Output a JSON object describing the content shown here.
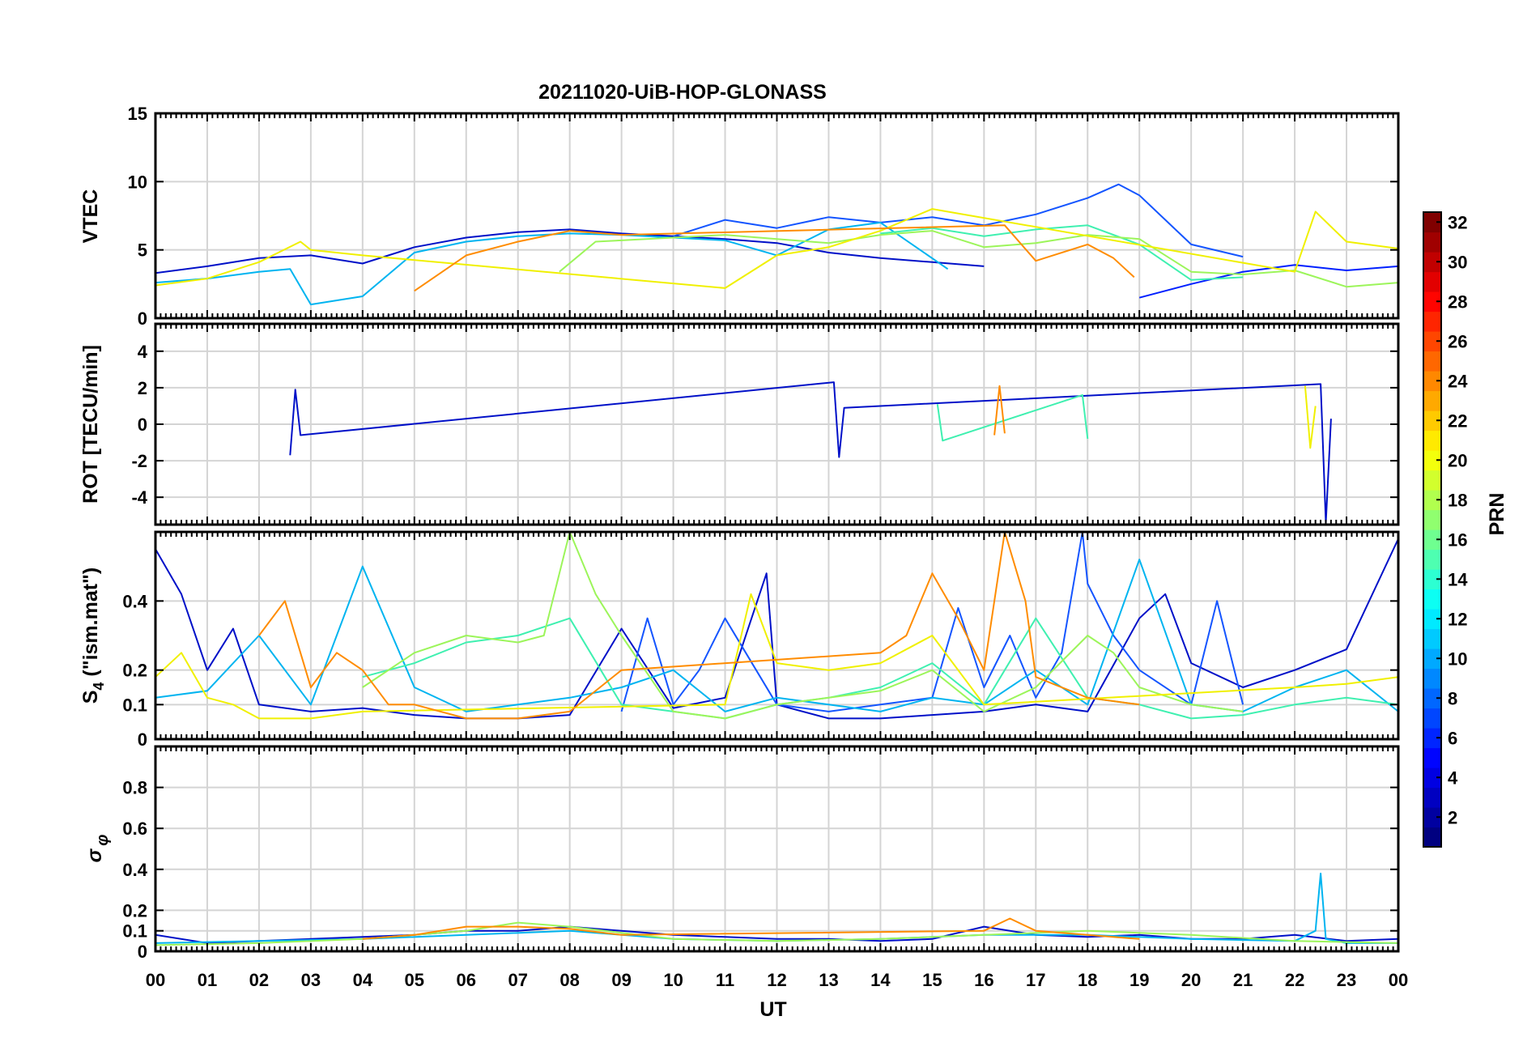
{
  "chart_data": {
    "type": "line",
    "title": "20211020-UiB-HOP-GLONASS",
    "xlabel": "UT",
    "x_range": [
      0,
      24
    ],
    "x_tick_labels": [
      "00",
      "01",
      "02",
      "03",
      "04",
      "05",
      "06",
      "07",
      "08",
      "09",
      "10",
      "11",
      "12",
      "13",
      "14",
      "15",
      "16",
      "17",
      "18",
      "19",
      "20",
      "21",
      "22",
      "23",
      "00"
    ],
    "panels": [
      {
        "name": "vtec",
        "ylabel": "VTEC",
        "ylim": [
          0,
          15
        ],
        "yticks": [
          0,
          5,
          10,
          15
        ],
        "ytick_labels": [
          "0",
          "5",
          "10",
          "15"
        ],
        "grid": true,
        "series": [
          {
            "name": "PRN 2",
            "prn": 2,
            "color": "#0010c8",
            "x": [
              0,
              1,
              2,
              3,
              4,
              5,
              6,
              7,
              8,
              9,
              10,
              11,
              12,
              13,
              14,
              15,
              16
            ],
            "y": [
              3.3,
              3.8,
              4.4,
              4.6,
              4.0,
              5.2,
              5.9,
              6.3,
              6.5,
              6.2,
              6.0,
              5.8,
              5.5,
              4.8,
              4.4,
              4.1,
              3.8
            ]
          },
          {
            "name": "PRN 3",
            "prn": 3,
            "color": "#0020ff",
            "x": [
              19,
              20,
              21,
              22,
              23,
              24
            ],
            "y": [
              1.5,
              2.5,
              3.4,
              3.9,
              3.5,
              3.8
            ]
          },
          {
            "name": "PRN 5",
            "prn": 5,
            "color": "#1455ff",
            "x": [
              10,
              11,
              12,
              13,
              14,
              15,
              16,
              17,
              18,
              18.6,
              19,
              20,
              21
            ],
            "y": [
              6.0,
              7.2,
              6.6,
              7.4,
              7.0,
              7.4,
              6.8,
              7.6,
              8.8,
              9.8,
              9.0,
              5.4,
              4.5
            ]
          },
          {
            "name": "PRN 11",
            "prn": 11,
            "color": "#00b4f0",
            "x": [
              0,
              1,
              2,
              2.6,
              3,
              4,
              5,
              6,
              7,
              8,
              9,
              10,
              11,
              12,
              13,
              14,
              15.3
            ],
            "y": [
              2.6,
              2.9,
              3.4,
              3.6,
              1.0,
              1.6,
              4.8,
              5.6,
              6.0,
              6.2,
              6.1,
              5.9,
              5.7,
              4.6,
              6.5,
              7.0,
              3.6
            ]
          },
          {
            "name": "PRN 15",
            "prn": 15,
            "color": "#3ff0b0",
            "x": [
              14,
              15,
              16,
              17,
              18,
              19,
              20,
              21
            ],
            "y": [
              6.2,
              6.6,
              6.0,
              6.5,
              6.8,
              5.4,
              2.8,
              3.0
            ]
          },
          {
            "name": "PRN 17",
            "prn": 17,
            "color": "#9cf55a",
            "x": [
              7.8,
              8.5,
              9,
              10,
              11,
              12,
              13,
              14,
              15,
              16,
              17,
              18,
              19,
              20,
              21,
              22,
              23,
              24
            ],
            "y": [
              3.4,
              5.6,
              5.7,
              5.9,
              6.1,
              5.8,
              5.5,
              6.1,
              6.4,
              5.2,
              5.5,
              6.1,
              5.8,
              3.4,
              3.2,
              3.5,
              2.3,
              2.6
            ]
          },
          {
            "name": "PRN 20",
            "prn": 20,
            "color": "#f0f000",
            "x": [
              0,
              1,
              2,
              2.8,
              3,
              4,
              11,
              12,
              13,
              14,
              15,
              22,
              22.4,
              23,
              24
            ],
            "y": [
              2.4,
              2.9,
              4.1,
              5.6,
              5.0,
              4.6,
              2.2,
              4.6,
              5.2,
              6.4,
              8.0,
              3.4,
              7.8,
              5.6,
              5.1
            ]
          },
          {
            "name": "PRN 23",
            "prn": 23,
            "color": "#ff8c00",
            "x": [
              5,
              6,
              7,
              8,
              9,
              16.4,
              17,
              18,
              18.5,
              18.9
            ],
            "y": [
              2.0,
              4.6,
              5.6,
              6.4,
              6.1,
              6.8,
              4.2,
              5.4,
              4.4,
              3.0
            ]
          }
        ]
      },
      {
        "name": "rot",
        "ylabel": "ROT [TECU/min]",
        "ylim": [
          -5.5,
          5.5
        ],
        "yticks": [
          -4,
          -2,
          0,
          2,
          4
        ],
        "ytick_labels": [
          "-4",
          "-2",
          "0",
          "2",
          "4"
        ],
        "grid": true,
        "series": [
          {
            "name": "PRN 2",
            "prn": 2,
            "color": "#0010c8",
            "x": [
              2.6,
              2.7,
              2.8,
              13.1,
              13.2,
              13.3,
              22.5,
              22.6,
              22.7
            ],
            "y": [
              -1.7,
              1.9,
              -0.6,
              2.3,
              -1.8,
              0.9,
              2.2,
              -5.4,
              0.3
            ]
          },
          {
            "name": "PRN 15",
            "prn": 15,
            "color": "#3ff0b0",
            "x": [
              15.1,
              15.2,
              17.9,
              18.0
            ],
            "y": [
              1.1,
              -0.9,
              1.6,
              -0.8
            ]
          },
          {
            "name": "PRN 20",
            "prn": 20,
            "color": "#f0f000",
            "x": [
              22.2,
              22.3,
              22.4
            ],
            "y": [
              2.1,
              -1.3,
              1.0
            ]
          },
          {
            "name": "PRN 23",
            "prn": 23,
            "color": "#ff8c00",
            "x": [
              16.2,
              16.3,
              16.4
            ],
            "y": [
              -0.6,
              2.1,
              -0.5
            ]
          }
        ]
      },
      {
        "name": "s4",
        "ylabel": "S4 (\"ism.mat\")",
        "ylim": [
          0,
          0.6
        ],
        "yticks": [
          0,
          0.1,
          0.2,
          0.4
        ],
        "ytick_labels": [
          "0",
          "0.1",
          "0.2",
          "0.4"
        ],
        "grid": true,
        "series": [
          {
            "name": "PRN 2",
            "prn": 2,
            "color": "#0010c8",
            "x": [
              0,
              0.5,
              1,
              1.5,
              2,
              3,
              4,
              5,
              6,
              7,
              8,
              9,
              10,
              11,
              11.8,
              12,
              13,
              14,
              15,
              16,
              17,
              18,
              19,
              19.5,
              20,
              21,
              22,
              23,
              24
            ],
            "y": [
              0.55,
              0.42,
              0.2,
              0.32,
              0.1,
              0.08,
              0.09,
              0.07,
              0.06,
              0.06,
              0.07,
              0.32,
              0.09,
              0.12,
              0.48,
              0.1,
              0.06,
              0.06,
              0.07,
              0.08,
              0.1,
              0.08,
              0.35,
              0.42,
              0.22,
              0.15,
              0.2,
              0.26,
              0.58
            ]
          },
          {
            "name": "PRN 5",
            "prn": 5,
            "color": "#1455ff",
            "x": [
              9,
              9.5,
              10,
              10.5,
              11,
              12,
              13,
              14,
              15,
              15.5,
              16,
              16.5,
              17,
              17.5,
              17.9,
              18,
              18.5,
              19,
              20,
              20.5,
              21
            ],
            "y": [
              0.08,
              0.35,
              0.1,
              0.2,
              0.35,
              0.1,
              0.08,
              0.1,
              0.12,
              0.38,
              0.15,
              0.3,
              0.12,
              0.25,
              0.6,
              0.45,
              0.3,
              0.2,
              0.1,
              0.4,
              0.1
            ]
          },
          {
            "name": "PRN 11",
            "prn": 11,
            "color": "#00b4f0",
            "x": [
              0,
              1,
              2,
              3,
              4,
              5,
              6,
              7,
              8,
              9,
              10,
              11,
              12,
              13,
              14,
              15,
              16,
              17,
              18,
              19,
              20,
              21,
              22,
              23,
              24
            ],
            "y": [
              0.12,
              0.14,
              0.3,
              0.1,
              0.5,
              0.15,
              0.08,
              0.1,
              0.12,
              0.15,
              0.2,
              0.08,
              0.12,
              0.1,
              0.08,
              0.12,
              0.1,
              0.2,
              0.1,
              0.52,
              0.1,
              0.08,
              0.15,
              0.2,
              0.08
            ]
          },
          {
            "name": "PRN 15",
            "prn": 15,
            "color": "#3ff0b0",
            "x": [
              4,
              5,
              6,
              7,
              8,
              9,
              10,
              11,
              12,
              13,
              14,
              15,
              16,
              17,
              18,
              19,
              20,
              21,
              22,
              23,
              24
            ],
            "y": [
              0.18,
              0.22,
              0.28,
              0.3,
              0.35,
              0.1,
              0.08,
              0.06,
              0.1,
              0.12,
              0.15,
              0.22,
              0.1,
              0.35,
              0.12,
              0.1,
              0.06,
              0.07,
              0.1,
              0.12,
              0.1
            ]
          },
          {
            "name": "PRN 17",
            "prn": 17,
            "color": "#9cf55a",
            "x": [
              4,
              5,
              6,
              7,
              7.5,
              8,
              8.5,
              9,
              10,
              11,
              12,
              13,
              14,
              15,
              16,
              17,
              18,
              18.5,
              19,
              20,
              21
            ],
            "y": [
              0.15,
              0.25,
              0.3,
              0.28,
              0.3,
              0.6,
              0.42,
              0.3,
              0.08,
              0.06,
              0.1,
              0.12,
              0.14,
              0.2,
              0.08,
              0.15,
              0.3,
              0.25,
              0.15,
              0.1,
              0.08
            ]
          },
          {
            "name": "PRN 20",
            "prn": 20,
            "color": "#f0f000",
            "x": [
              0,
              0.5,
              1,
              1.5,
              2,
              3,
              4,
              11,
              11.5,
              12,
              13,
              14,
              15,
              16,
              22,
              23,
              24
            ],
            "y": [
              0.18,
              0.25,
              0.12,
              0.1,
              0.06,
              0.06,
              0.08,
              0.1,
              0.42,
              0.22,
              0.2,
              0.22,
              0.3,
              0.1,
              0.15,
              0.16,
              0.18
            ]
          },
          {
            "name": "PRN 23",
            "prn": 23,
            "color": "#ff8c00",
            "x": [
              2,
              2.5,
              3,
              3.5,
              4,
              4.5,
              5,
              6,
              7,
              8,
              9,
              14,
              14.5,
              15,
              15.5,
              16,
              16.4,
              16.8,
              17,
              18,
              19
            ],
            "y": [
              0.3,
              0.4,
              0.15,
              0.25,
              0.2,
              0.1,
              0.1,
              0.06,
              0.06,
              0.08,
              0.2,
              0.25,
              0.3,
              0.48,
              0.35,
              0.2,
              0.6,
              0.4,
              0.18,
              0.12,
              0.1
            ]
          }
        ]
      },
      {
        "name": "sigma_phi",
        "ylabel": "σ φ",
        "ylim": [
          0,
          1.0
        ],
        "yticks": [
          0,
          0.1,
          0.2,
          0.4,
          0.6,
          0.8
        ],
        "ytick_labels": [
          "0",
          "0.1",
          "0.2",
          "0.4",
          "0.6",
          "0.8"
        ],
        "grid": true,
        "series": [
          {
            "name": "PRN 2",
            "prn": 2,
            "color": "#0010c8",
            "x": [
              0,
              1,
              2,
              3,
              4,
              5,
              6,
              7,
              8,
              9,
              10,
              11,
              12,
              13,
              14,
              15,
              16,
              17,
              18,
              19,
              20,
              21,
              22,
              23,
              24
            ],
            "y": [
              0.08,
              0.04,
              0.05,
              0.06,
              0.07,
              0.08,
              0.1,
              0.1,
              0.12,
              0.1,
              0.08,
              0.07,
              0.06,
              0.06,
              0.05,
              0.06,
              0.12,
              0.08,
              0.07,
              0.08,
              0.06,
              0.06,
              0.08,
              0.05,
              0.06
            ]
          },
          {
            "name": "PRN 11",
            "prn": 11,
            "color": "#00b4f0",
            "x": [
              0,
              2,
              4,
              6,
              8,
              10,
              12,
              14,
              16,
              18,
              20,
              22,
              22.4,
              22.5,
              22.6,
              23,
              24
            ],
            "y": [
              0.04,
              0.05,
              0.06,
              0.08,
              0.1,
              0.06,
              0.05,
              0.06,
              0.08,
              0.08,
              0.06,
              0.05,
              0.1,
              0.38,
              0.06,
              0.04,
              0.04
            ]
          },
          {
            "name": "PRN 17",
            "prn": 17,
            "color": "#9cf55a",
            "x": [
              0,
              2,
              4,
              6,
              7,
              8,
              10,
              12,
              14,
              16,
              18,
              20,
              22,
              24
            ],
            "y": [
              0.03,
              0.04,
              0.06,
              0.1,
              0.14,
              0.12,
              0.06,
              0.05,
              0.06,
              0.08,
              0.1,
              0.08,
              0.05,
              0.04
            ]
          },
          {
            "name": "PRN 23",
            "prn": 23,
            "color": "#ff8c00",
            "x": [
              4,
              5,
              6,
              7,
              8,
              9,
              16,
              16.5,
              17,
              18,
              19
            ],
            "y": [
              0.06,
              0.08,
              0.12,
              0.12,
              0.11,
              0.08,
              0.1,
              0.16,
              0.1,
              0.08,
              0.06
            ]
          }
        ]
      }
    ],
    "colorbar": {
      "label": "PRN",
      "range": [
        1,
        32
      ],
      "ticks": [
        2,
        4,
        6,
        8,
        10,
        12,
        14,
        16,
        18,
        20,
        22,
        24,
        26,
        28,
        30,
        32
      ],
      "tick_labels": [
        "2",
        "4",
        "6",
        "8",
        "10",
        "12",
        "14",
        "16",
        "18",
        "20",
        "22",
        "24",
        "26",
        "28",
        "30",
        "32"
      ],
      "colormap": "jet"
    }
  }
}
